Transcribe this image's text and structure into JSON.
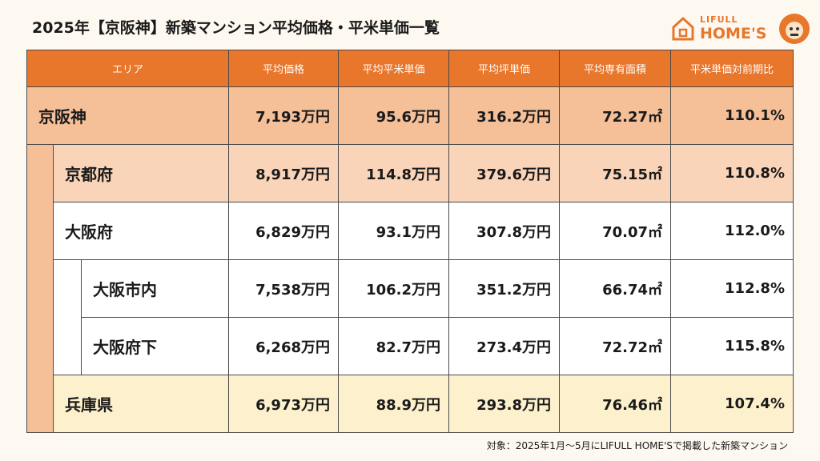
{
  "header": {
    "title": "2025年【京阪神】新築マンション平均価格・平米単価一覧",
    "logo_top": "LIFULL",
    "logo_bottom": "HOME'S"
  },
  "table": {
    "columns": [
      "エリア",
      "平均価格",
      "平均平米単価",
      "平均坪単価",
      "平均専有面積",
      "平米単価対前期比"
    ],
    "rows": [
      [
        "京阪神",
        "7,193万円",
        "95.6万円",
        "316.2万円",
        "72.27㎡",
        "110.1%"
      ],
      [
        "京都府",
        "8,917万円",
        "114.8万円",
        "379.6万円",
        "75.15㎡",
        "110.8%"
      ],
      [
        "大阪府",
        "6,829万円",
        "93.1万円",
        "307.8万円",
        "70.07㎡",
        "112.0%"
      ],
      [
        "大阪市内",
        "7,538万円",
        "106.2万円",
        "351.2万円",
        "66.74㎡",
        "112.8%"
      ],
      [
        "大阪府下",
        "6,268万円",
        "82.7万円",
        "273.4万円",
        "72.72㎡",
        "115.8%"
      ],
      [
        "兵庫県",
        "6,973万円",
        "88.9万円",
        "293.8万円",
        "76.46㎡",
        "107.4%"
      ]
    ]
  },
  "footnote": "対象：2025年1月～5月にLIFULL HOME'Sで掲載した新築マンション"
}
